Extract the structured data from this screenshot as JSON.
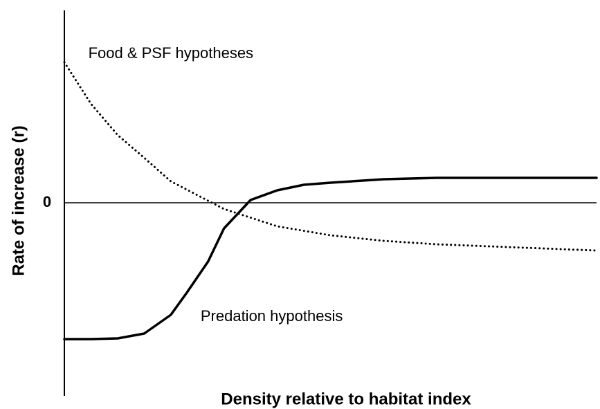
{
  "chart_data": {
    "type": "line",
    "xlabel": "Density relative to habitat index",
    "ylabel": "Rate of increase (r)",
    "xlim": [
      0,
      100
    ],
    "ylim": [
      -5.6,
      5.6
    ],
    "yticks": [
      0
    ],
    "annotations": [
      {
        "text": "Food & PSF hypotheses",
        "x": 4.5,
        "y": 4.3
      },
      {
        "text": "Predation hypothesis",
        "x": 25.6,
        "y": -3.3
      }
    ],
    "series": [
      {
        "color": "#000000",
        "linestyle": "dotted",
        "x": [
          0,
          5,
          10,
          15,
          20,
          30,
          40,
          50,
          60,
          70,
          80,
          90,
          100
        ],
        "values": [
          4.06,
          2.86,
          1.96,
          1.3,
          0.62,
          -0.18,
          -0.68,
          -0.94,
          -1.1,
          -1.2,
          -1.26,
          -1.32,
          -1.38
        ]
      },
      {
        "color": "#000000",
        "linestyle": "solid",
        "x": [
          0,
          5,
          10,
          15,
          20,
          23,
          27,
          30,
          35,
          40,
          45,
          50,
          60,
          70,
          100
        ],
        "values": [
          -3.94,
          -3.94,
          -3.92,
          -3.78,
          -3.24,
          -2.6,
          -1.7,
          -0.74,
          0.08,
          0.36,
          0.52,
          0.58,
          0.68,
          0.72,
          0.72
        ]
      }
    ]
  }
}
